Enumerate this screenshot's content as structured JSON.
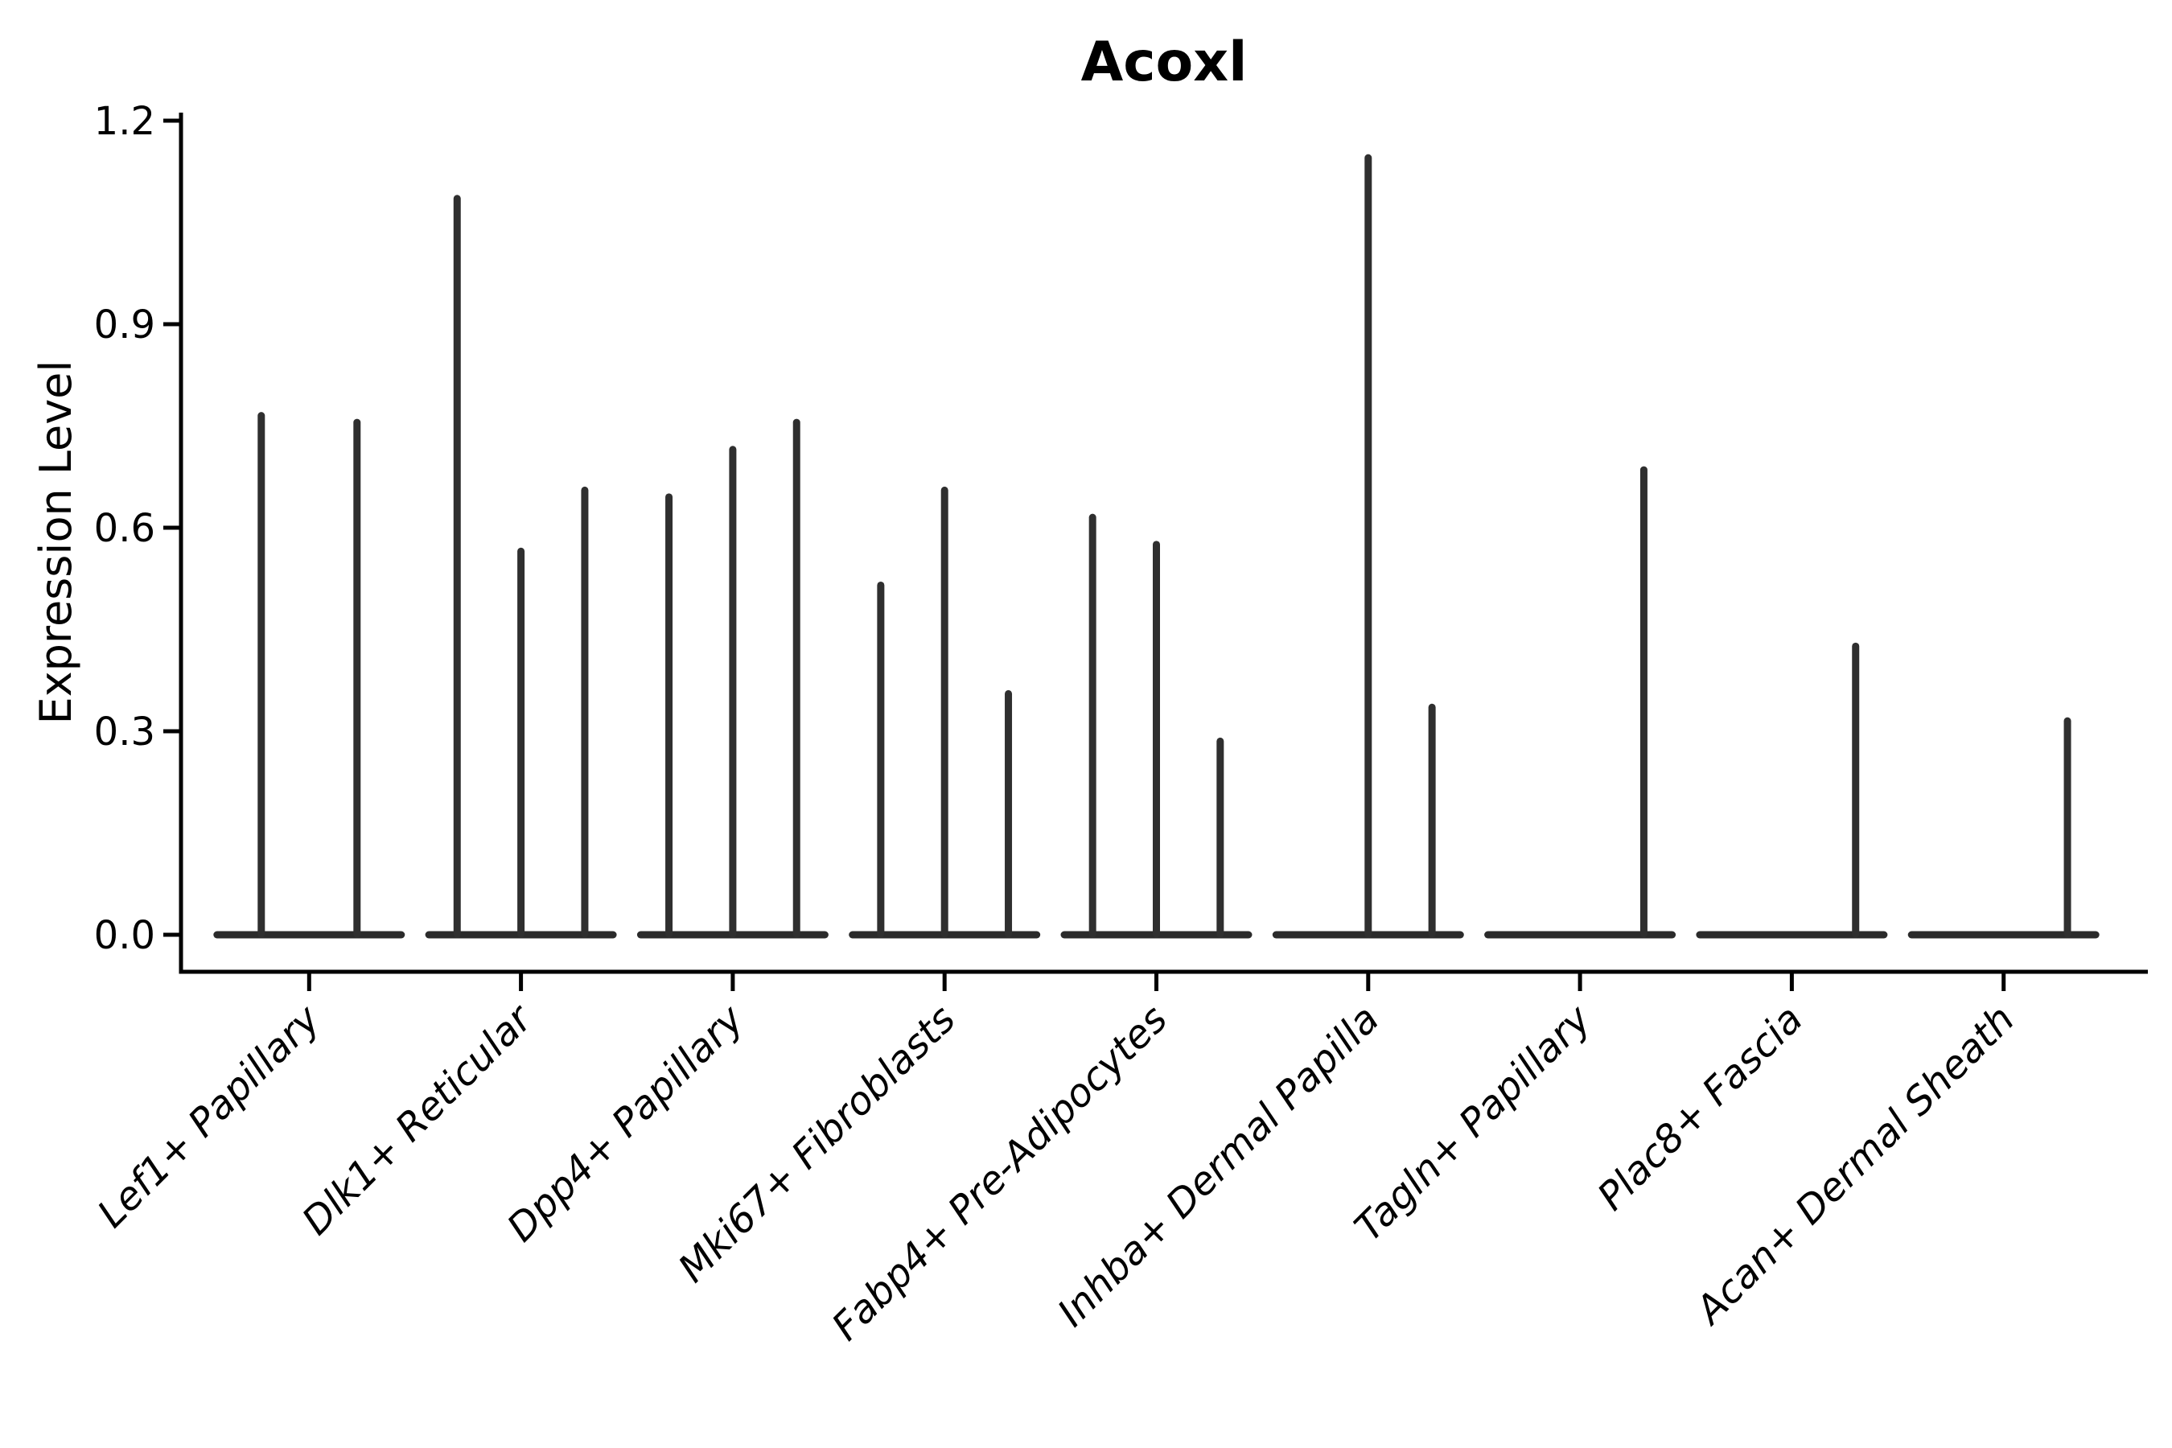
{
  "chart_data": {
    "type": "violin",
    "title": "Acoxl",
    "ylabel": "Expression Level",
    "xlabel": "",
    "grid": false,
    "legend_position": "none",
    "ylim": [
      -0.055,
      1.213
    ],
    "yticks": [
      0.0,
      0.3,
      0.6,
      0.9,
      1.2
    ],
    "ytick_labels": [
      "0.0",
      "0.3",
      "0.6",
      "0.9",
      "1.2"
    ],
    "categories": [
      "Lef1+ Papillary",
      "Dlk1+ Reticular",
      "Dpp4+ Papillary",
      "Mki67+ Fibroblasts",
      "Fabp4+ Pre-Adipocytes",
      "Inhba+ Dermal Papilla",
      "Tagln+ Papillary",
      "Plac8+ Fascia",
      "Acan+ Dermal Sheath"
    ],
    "groups": [
      {
        "label": "Lef1+ Papillary",
        "violin_peaks": [
          0.77,
          0.76
        ]
      },
      {
        "label": "Dlk1+ Reticular",
        "violin_peaks": [
          1.09,
          0.57,
          0.66
        ]
      },
      {
        "label": "Dpp4+ Papillary",
        "violin_peaks": [
          0.65,
          0.72,
          0.76
        ]
      },
      {
        "label": "Mki67+ Fibroblasts",
        "violin_peaks": [
          0.52,
          0.66,
          0.36
        ]
      },
      {
        "label": "Fabp4+ Pre-Adipocytes",
        "violin_peaks": [
          0.62,
          0.58,
          0.29
        ]
      },
      {
        "label": "Inhba+ Dermal Papilla",
        "violin_peaks": [
          0.0,
          1.15,
          0.34
        ]
      },
      {
        "label": "Tagln+ Papillary",
        "violin_peaks": [
          0.0,
          0.0,
          0.69
        ]
      },
      {
        "label": "Plac8+ Fascia",
        "violin_peaks": [
          0.0,
          0.0,
          0.43
        ]
      },
      {
        "label": "Acan+ Dermal Sheath",
        "violin_peaks": [
          0.0,
          0.0,
          0.32
        ]
      }
    ],
    "colors": {
      "violin": "#2f2f2f",
      "violin_base": "#2b2b2b",
      "axis": "#000000",
      "background": "#ffffff"
    }
  }
}
